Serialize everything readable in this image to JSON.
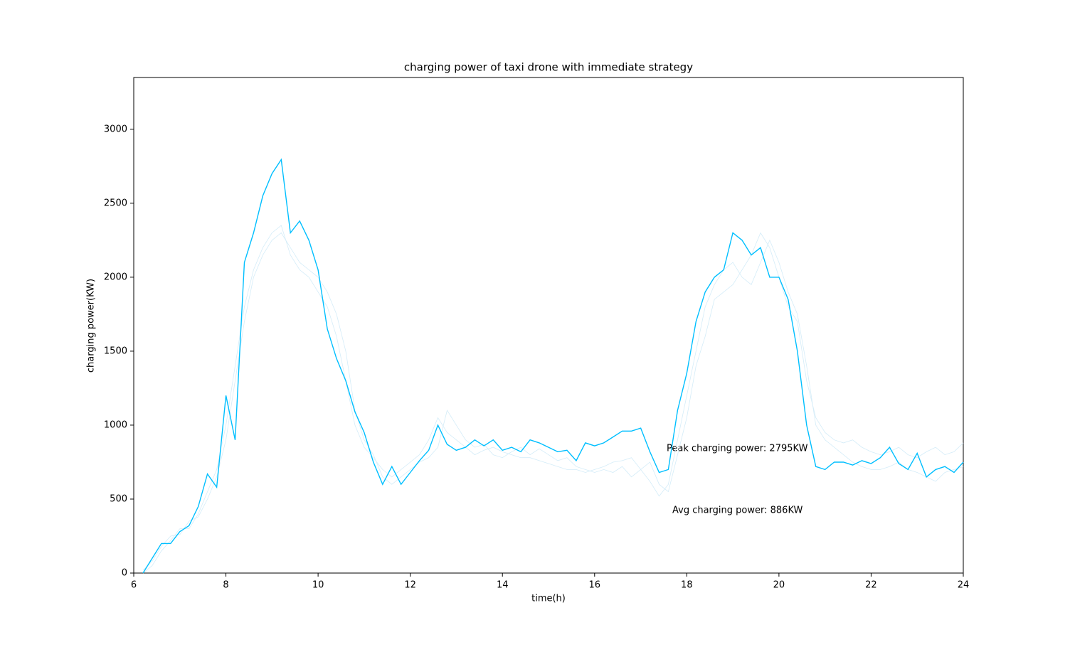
{
  "chart_data": {
    "type": "line",
    "title": "charging power of taxi drone with immediate strategy",
    "x_label": "time(h)",
    "y_label": "charging power(KW)",
    "annotations": [
      "Peak charging power: 2795KW",
      "Avg charging power: 886KW"
    ],
    "x": [
      6.2,
      6.4,
      6.6,
      6.8,
      7.0,
      7.2,
      7.4,
      7.6,
      7.8,
      8.0,
      8.2,
      8.4,
      8.6,
      8.8,
      9.0,
      9.2,
      9.4,
      9.6,
      9.8,
      10.0,
      10.2,
      10.4,
      10.6,
      10.8,
      11.0,
      11.2,
      11.4,
      11.6,
      11.8,
      12.0,
      12.2,
      12.4,
      12.6,
      12.8,
      13.0,
      13.2,
      13.4,
      13.6,
      13.8,
      14.0,
      14.2,
      14.4,
      14.6,
      14.8,
      15.0,
      15.2,
      15.4,
      15.6,
      15.8,
      16.0,
      16.2,
      16.4,
      16.6,
      16.8,
      17.0,
      17.2,
      17.4,
      17.6,
      17.8,
      18.0,
      18.2,
      18.4,
      18.6,
      18.8,
      19.0,
      19.2,
      19.4,
      19.6,
      19.8,
      20.0,
      20.2,
      20.4,
      20.6,
      20.8,
      21.0,
      21.2,
      21.4,
      21.6,
      21.8,
      22.0,
      22.2,
      22.4,
      22.6,
      22.8,
      23.0,
      23.2,
      23.4,
      23.6,
      23.8,
      24.0
    ],
    "series": [
      {
        "color": "#d4ecf8",
        "values": [
          0,
          50,
          150,
          220,
          300,
          300,
          400,
          550,
          700,
          1000,
          1400,
          1800,
          2050,
          2200,
          2300,
          2350,
          2150,
          2050,
          2000,
          1900,
          1800,
          1600,
          1300,
          1000,
          850,
          780,
          700,
          650,
          700,
          750,
          800,
          900,
          1050,
          950,
          900,
          850,
          800,
          830,
          850,
          820,
          800,
          780,
          780,
          760,
          740,
          720,
          700,
          700,
          680,
          700,
          720,
          750,
          760,
          780,
          700,
          620,
          520,
          600,
          900,
          1200,
          1500,
          1800,
          1950,
          2050,
          2100,
          2000,
          1950,
          2100,
          2250,
          2100,
          1900,
          1750,
          1400,
          1000,
          900,
          850,
          800,
          750,
          720,
          700,
          700,
          720,
          750,
          700,
          680,
          650,
          620,
          680,
          700,
          720
        ]
      },
      {
        "color": "#d4ecf8",
        "values": [
          20,
          80,
          180,
          250,
          260,
          350,
          380,
          500,
          650,
          900,
          1300,
          1700,
          2000,
          2150,
          2250,
          2300,
          2200,
          2100,
          2050,
          2000,
          1900,
          1750,
          1500,
          1100,
          900,
          800,
          650,
          600,
          650,
          700,
          750,
          780,
          850,
          1100,
          1000,
          900,
          850,
          870,
          800,
          780,
          820,
          850,
          800,
          840,
          800,
          760,
          780,
          720,
          700,
          680,
          700,
          680,
          720,
          650,
          700,
          750,
          600,
          550,
          800,
          1050,
          1400,
          1600,
          1850,
          1900,
          1950,
          2050,
          2150,
          2300,
          2200,
          2000,
          1800,
          1700,
          1300,
          1050,
          950,
          900,
          880,
          900,
          850,
          820,
          800,
          820,
          850,
          800,
          780,
          820,
          850,
          800,
          820,
          880
        ]
      },
      {
        "color": "#00bfff",
        "values": [
          0,
          100,
          200,
          200,
          280,
          320,
          450,
          670,
          580,
          1200,
          900,
          2100,
          2300,
          2550,
          2700,
          2795,
          2300,
          2380,
          2250,
          2050,
          1650,
          1450,
          1300,
          1090,
          950,
          750,
          600,
          720,
          600,
          680,
          760,
          830,
          1000,
          870,
          830,
          850,
          900,
          860,
          900,
          830,
          850,
          820,
          900,
          880,
          850,
          820,
          830,
          760,
          880,
          860,
          880,
          920,
          960,
          960,
          980,
          820,
          680,
          700,
          1100,
          1350,
          1700,
          1900,
          2000,
          2050,
          2300,
          2250,
          2150,
          2200,
          2000,
          2000,
          1850,
          1500,
          1000,
          720,
          700,
          750,
          750,
          730,
          760,
          740,
          780,
          850,
          740,
          700,
          810,
          650,
          700,
          720,
          680,
          750
        ]
      }
    ],
    "xlim": [
      6,
      24
    ],
    "xticks": [
      6,
      8,
      10,
      12,
      14,
      16,
      18,
      20,
      22,
      24
    ],
    "ylim": [
      0,
      3350
    ],
    "yticks": [
      0,
      500,
      1000,
      1500,
      2000,
      2500,
      3000
    ]
  }
}
